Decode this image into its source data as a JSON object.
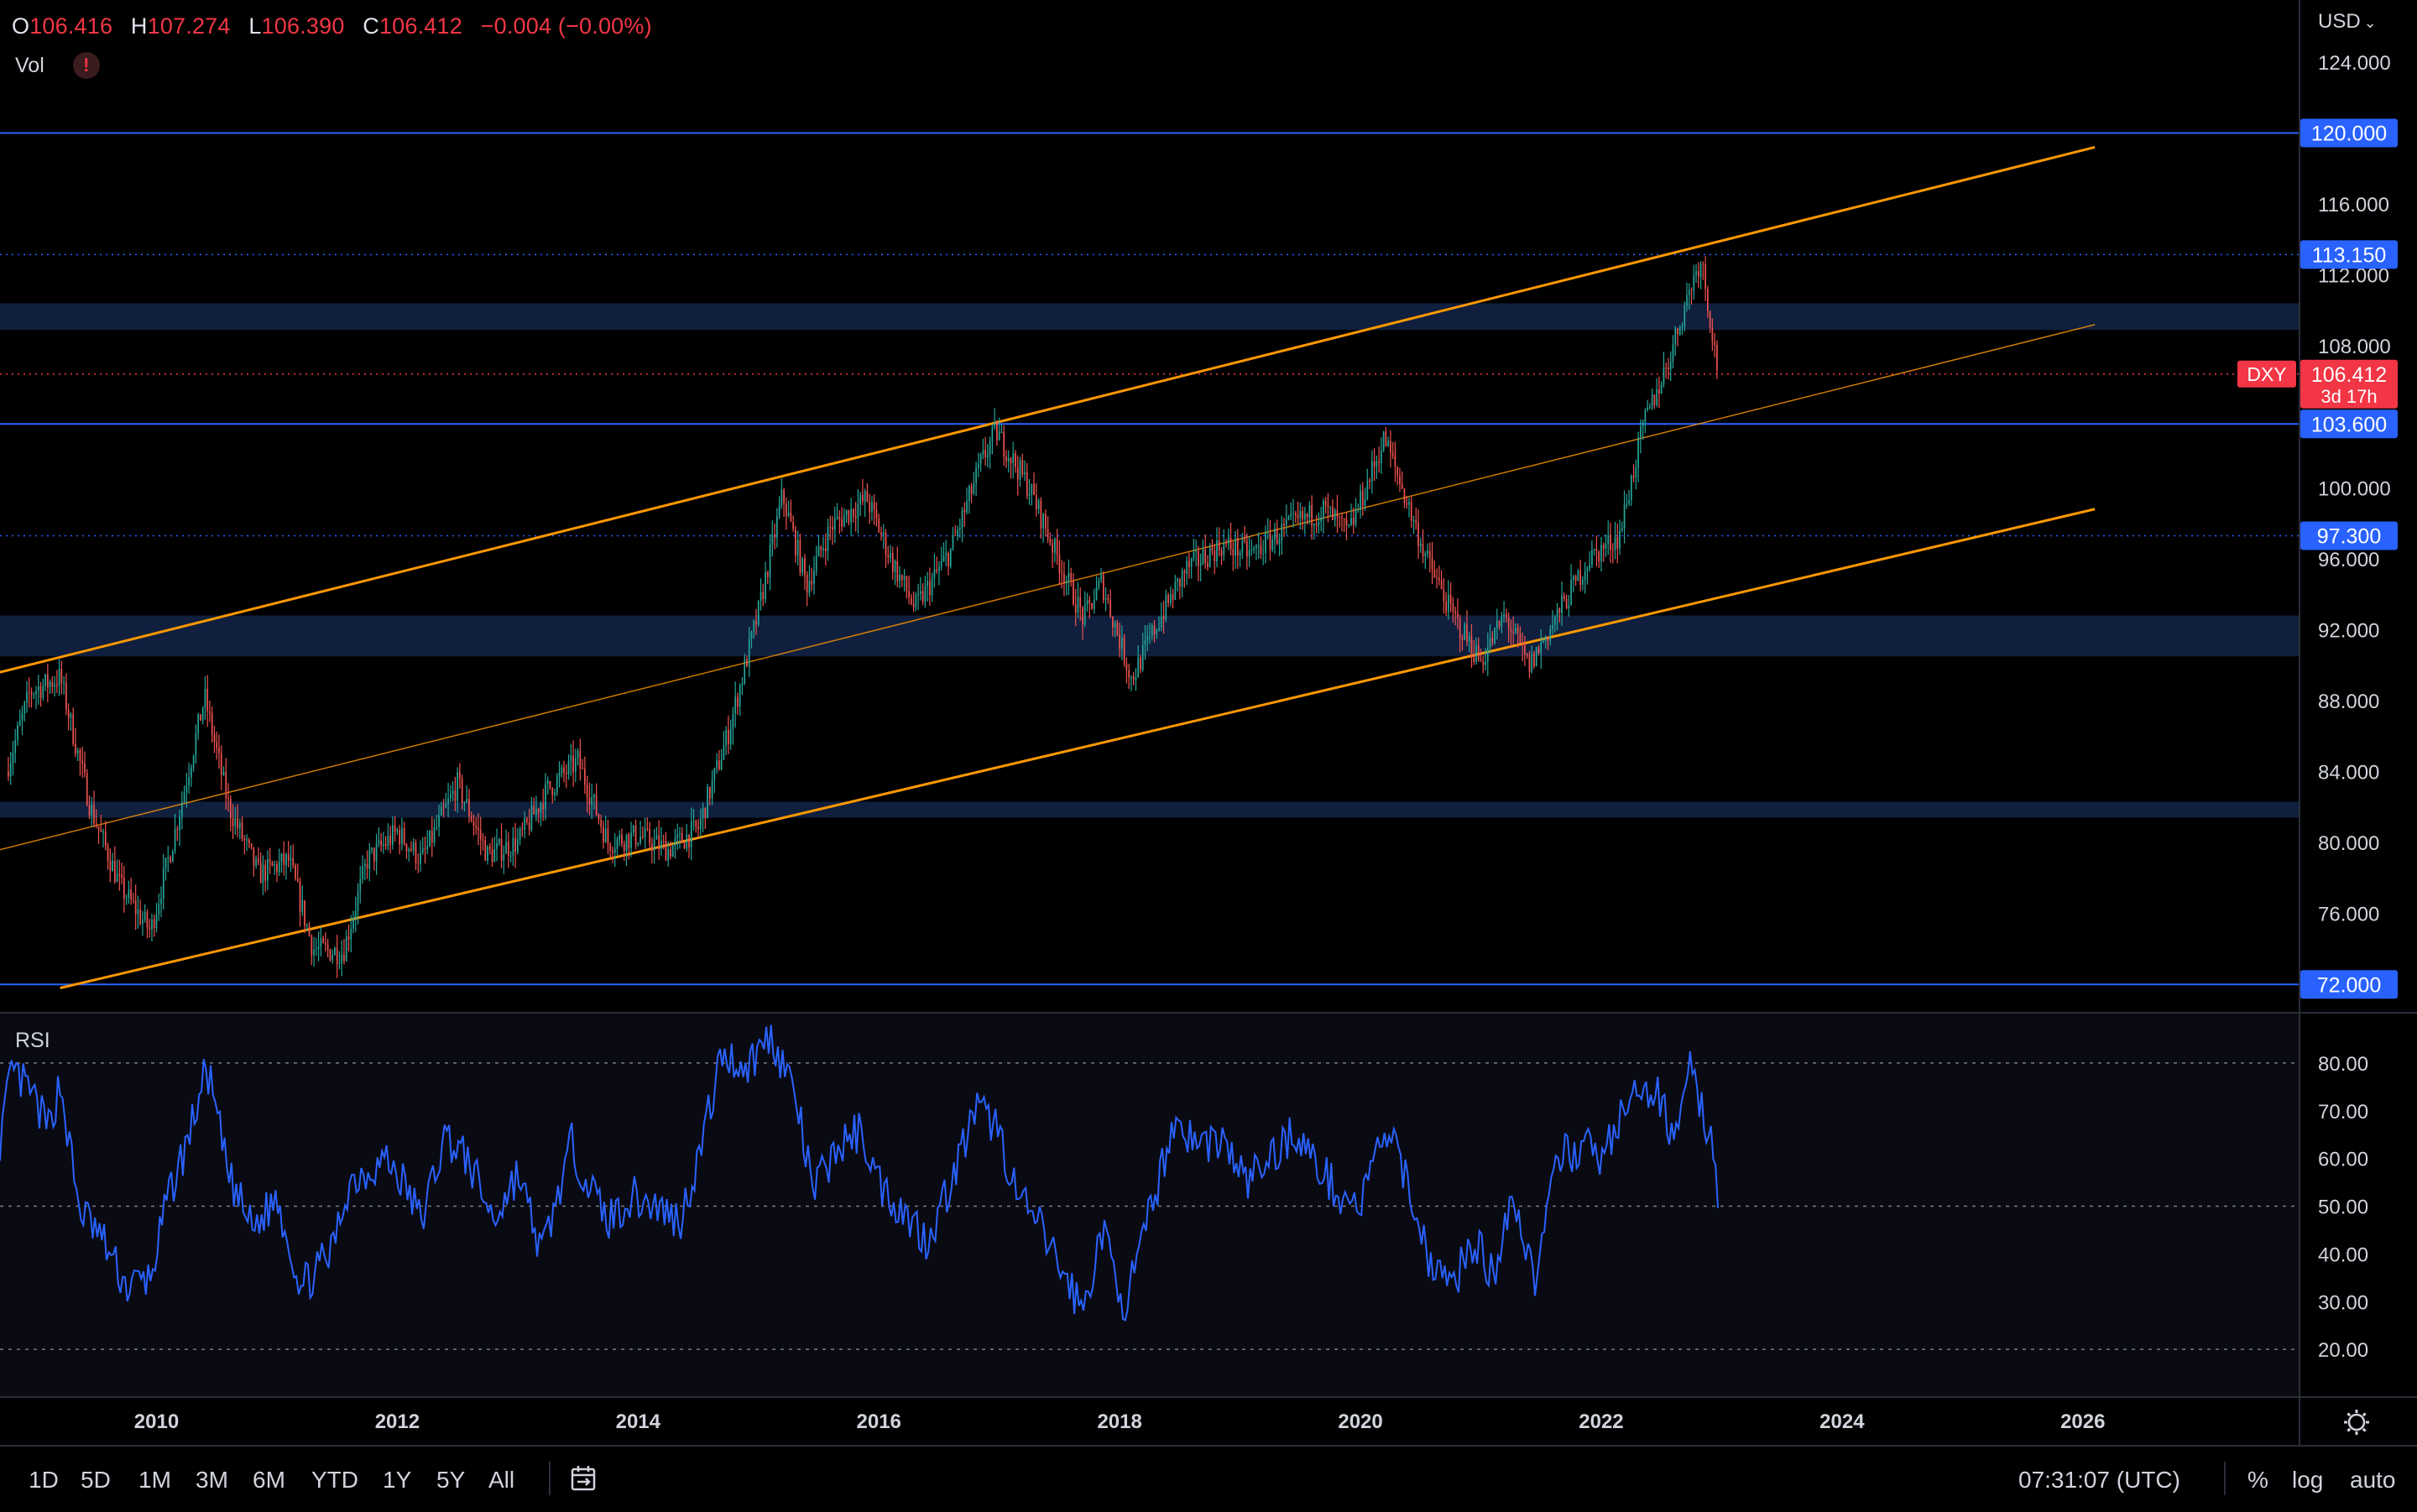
{
  "ohlc": {
    "o_label": "O",
    "o": "106.416",
    "h_label": "H",
    "h": "107.274",
    "l_label": "L",
    "l": "106.390",
    "c_label": "C",
    "c": "106.412",
    "change": "−0.004 (−0.00%)"
  },
  "indicators": {
    "vol": "Vol",
    "warning": "!",
    "rsi": "RSI"
  },
  "currency": "USD",
  "colors": {
    "up": "#26a69a",
    "down": "#ef5350",
    "channel": "#ff9800",
    "hline": "#2962ff",
    "zone": "#0f1f3d",
    "rsi": "#2962ff",
    "price_tag": "#f23645"
  },
  "price_axis": [
    "124.000",
    "116.000",
    "112.000",
    "108.000",
    "100.000",
    "96.000",
    "92.000",
    "88.000",
    "84.000",
    "80.000",
    "76.000"
  ],
  "price_ticks_num": [
    124,
    116,
    112,
    108,
    100,
    96,
    92,
    88,
    84,
    80,
    76
  ],
  "level_tags": [
    {
      "label": "120.000",
      "price": 120,
      "style": "solid"
    },
    {
      "label": "113.150",
      "price": 113.15,
      "style": "dotted"
    },
    {
      "label": "103.600",
      "price": 103.6,
      "style": "solid"
    },
    {
      "label": "97.300",
      "price": 97.3,
      "style": "dotted"
    },
    {
      "label": "72.000",
      "price": 72,
      "style": "solid"
    }
  ],
  "current_price": {
    "symbol": "DXY",
    "price_label": "106.412",
    "countdown": "3d 17h",
    "price": 106.412
  },
  "zones": [
    [
      108.9,
      110.4
    ],
    [
      90.5,
      92.8
    ],
    [
      81.4,
      82.3
    ]
  ],
  "channel": {
    "upper": [
      [
        2008.7,
        89.6
      ],
      [
        2026.1,
        119.2
      ]
    ],
    "middle": [
      [
        2008.7,
        79.6
      ],
      [
        2026.1,
        109.2
      ]
    ],
    "lower": [
      [
        2009.2,
        71.8
      ],
      [
        2026.1,
        98.8
      ]
    ]
  },
  "rsi_axis": [
    "80.00",
    "70.00",
    "60.00",
    "50.00",
    "40.00",
    "30.00",
    "20.00"
  ],
  "rsi_ticks_num": [
    80,
    70,
    60,
    50,
    40,
    30,
    20
  ],
  "time_axis": [
    "2010",
    "2012",
    "2014",
    "2016",
    "2018",
    "2020",
    "2022",
    "2024",
    "2026"
  ],
  "time_ticks_num": [
    2010,
    2012,
    2014,
    2016,
    2018,
    2020,
    2022,
    2024,
    2026
  ],
  "timeframes": [
    "1D",
    "5D",
    "1M",
    "3M",
    "6M",
    "YTD",
    "1Y",
    "5Y",
    "All"
  ],
  "clock": "07:31:07 (UTC)",
  "toggles": {
    "percent": "%",
    "log": "log",
    "auto": "auto"
  },
  "chart_data": {
    "type": "candlestick",
    "symbol": "DXY",
    "interval": "weekly",
    "x_range": [
      2008.7,
      2027.8
    ],
    "y_range": [
      70.5,
      127.5
    ],
    "price_anchors": [
      [
        2008.75,
        84.0
      ],
      [
        2008.95,
        88.5
      ],
      [
        2009.2,
        89.3
      ],
      [
        2009.45,
        82.0
      ],
      [
        2009.7,
        77.5
      ],
      [
        2009.95,
        75.0
      ],
      [
        2010.15,
        80.5
      ],
      [
        2010.4,
        88.2
      ],
      [
        2010.6,
        82.0
      ],
      [
        2010.85,
        78.2
      ],
      [
        2011.1,
        79.0
      ],
      [
        2011.3,
        74.0
      ],
      [
        2011.55,
        73.8
      ],
      [
        2011.75,
        79.0
      ],
      [
        2012.0,
        80.6
      ],
      [
        2012.2,
        79.0
      ],
      [
        2012.5,
        83.3
      ],
      [
        2012.75,
        79.3
      ],
      [
        2013.0,
        80.0
      ],
      [
        2013.25,
        83.0
      ],
      [
        2013.5,
        84.6
      ],
      [
        2013.75,
        80.0
      ],
      [
        2014.0,
        80.4
      ],
      [
        2014.25,
        79.6
      ],
      [
        2014.5,
        80.8
      ],
      [
        2014.75,
        86.2
      ],
      [
        2015.0,
        93.0
      ],
      [
        2015.2,
        99.6
      ],
      [
        2015.4,
        94.5
      ],
      [
        2015.6,
        97.8
      ],
      [
        2015.9,
        99.4
      ],
      [
        2016.1,
        96.0
      ],
      [
        2016.3,
        93.2
      ],
      [
        2016.6,
        96.5
      ],
      [
        2016.85,
        101.4
      ],
      [
        2016.97,
        103.2
      ],
      [
        2017.25,
        100.0
      ],
      [
        2017.5,
        95.8
      ],
      [
        2017.7,
        92.6
      ],
      [
        2017.85,
        94.7
      ],
      [
        2018.1,
        89.2
      ],
      [
        2018.3,
        92.2
      ],
      [
        2018.55,
        95.4
      ],
      [
        2018.85,
        96.8
      ],
      [
        2019.1,
        96.3
      ],
      [
        2019.4,
        97.8
      ],
      [
        2019.7,
        98.8
      ],
      [
        2019.9,
        97.4
      ],
      [
        2020.2,
        102.8
      ],
      [
        2020.35,
        99.9
      ],
      [
        2020.55,
        96.0
      ],
      [
        2020.75,
        93.0
      ],
      [
        2021.0,
        90.2
      ],
      [
        2021.2,
        92.8
      ],
      [
        2021.4,
        89.9
      ],
      [
        2021.65,
        93.0
      ],
      [
        2021.9,
        96.0
      ],
      [
        2022.15,
        97.3
      ],
      [
        2022.35,
        103.5
      ],
      [
        2022.55,
        107.0
      ],
      [
        2022.75,
        111.5
      ],
      [
        2022.83,
        113.0
      ],
      [
        2022.9,
        109.8
      ],
      [
        2022.97,
        106.4
      ]
    ],
    "rsi_anchors": [
      [
        2008.7,
        64
      ],
      [
        2008.8,
        78
      ],
      [
        2008.95,
        74
      ],
      [
        2009.1,
        66
      ],
      [
        2009.2,
        76
      ],
      [
        2009.35,
        50
      ],
      [
        2009.55,
        43
      ],
      [
        2009.75,
        33
      ],
      [
        2009.95,
        35
      ],
      [
        2010.1,
        52
      ],
      [
        2010.25,
        63
      ],
      [
        2010.42,
        79
      ],
      [
        2010.6,
        56
      ],
      [
        2010.8,
        45
      ],
      [
        2011.0,
        52
      ],
      [
        2011.2,
        33
      ],
      [
        2011.45,
        40
      ],
      [
        2011.6,
        55
      ],
      [
        2011.9,
        60
      ],
      [
        2012.05,
        55
      ],
      [
        2012.2,
        47
      ],
      [
        2012.4,
        65
      ],
      [
        2012.6,
        59
      ],
      [
        2012.8,
        47
      ],
      [
        2013.0,
        57
      ],
      [
        2013.2,
        40
      ],
      [
        2013.45,
        63
      ],
      [
        2013.6,
        54
      ],
      [
        2013.75,
        47
      ],
      [
        2013.95,
        52
      ],
      [
        2014.15,
        50
      ],
      [
        2014.35,
        47
      ],
      [
        2014.5,
        60
      ],
      [
        2014.7,
        82
      ],
      [
        2014.9,
        79
      ],
      [
        2015.1,
        86
      ],
      [
        2015.3,
        74
      ],
      [
        2015.45,
        53
      ],
      [
        2015.65,
        62
      ],
      [
        2015.85,
        66
      ],
      [
        2016.0,
        55
      ],
      [
        2016.2,
        49
      ],
      [
        2016.4,
        43
      ],
      [
        2016.6,
        55
      ],
      [
        2016.8,
        70
      ],
      [
        2016.98,
        67
      ],
      [
        2017.15,
        52
      ],
      [
        2017.35,
        45
      ],
      [
        2017.55,
        35
      ],
      [
        2017.7,
        28
      ],
      [
        2017.85,
        45
      ],
      [
        2018.05,
        29
      ],
      [
        2018.25,
        48
      ],
      [
        2018.45,
        68
      ],
      [
        2018.65,
        63
      ],
      [
        2018.85,
        64
      ],
      [
        2019.05,
        55
      ],
      [
        2019.25,
        60
      ],
      [
        2019.45,
        66
      ],
      [
        2019.65,
        58
      ],
      [
        2019.85,
        52
      ],
      [
        2020.0,
        50
      ],
      [
        2020.2,
        66
      ],
      [
        2020.4,
        55
      ],
      [
        2020.55,
        40
      ],
      [
        2020.75,
        33
      ],
      [
        2020.95,
        43
      ],
      [
        2021.1,
        35
      ],
      [
        2021.25,
        53
      ],
      [
        2021.45,
        35
      ],
      [
        2021.65,
        60
      ],
      [
        2021.85,
        63
      ],
      [
        2022.0,
        60
      ],
      [
        2022.15,
        68
      ],
      [
        2022.3,
        73
      ],
      [
        2022.45,
        74
      ],
      [
        2022.6,
        65
      ],
      [
        2022.72,
        80
      ],
      [
        2022.85,
        69
      ],
      [
        2022.93,
        63
      ],
      [
        2022.97,
        46
      ]
    ]
  }
}
